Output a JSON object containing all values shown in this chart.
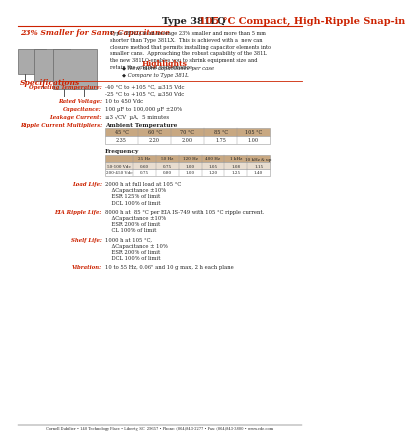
{
  "title_black": "Type 381LQ ",
  "title_red": "105 °C Compact, High-Ripple Snap-in",
  "subtitle": "23% Smaller for Same Capacitance",
  "body_text": "Type 381LQ is on average 23% smaller and more than 5 mm\nshorter than Type 381LX.  This is achieved with a  new can\nclosure method that permits installing capacitor elements into\nsmaller cans.  Approaching the robust capability of the 381L\nthe new 381LQ enables you to shrink equipment size and\nretain the original performance.",
  "highlights_title": "Highlights",
  "highlights": [
    "New, more capacitance per case",
    "Compare to Type 381L"
  ],
  "spec_title": "Specifications",
  "specs": [
    [
      "Operating Temperature:",
      "-40 °C to +105 °C, ≤315 Vdc\n-25 °C to +105 °C, ≥350 Vdc"
    ],
    [
      "Rated Voltage:",
      "10 to 450 Vdc"
    ],
    [
      "Capacitance:",
      "100 µF to 100,000 µF ±20%"
    ],
    [
      "Leakage Current:",
      "≤3 √CV  µA,  5 minutes"
    ],
    [
      "Ripple Current Multipliers:",
      "Ambient Temperature"
    ]
  ],
  "amb_temp_headers": [
    "45 °C",
    "60 °C",
    "70 °C",
    "85 °C",
    "105 °C"
  ],
  "amb_temp_values": [
    "2.35",
    "2.20",
    "2.00",
    "1.75",
    "1.00"
  ],
  "freq_label": "Frequency",
  "freq_headers": [
    "25 Hz",
    "50 Hz",
    "120 Hz",
    "400 Hz",
    "1 kHz",
    "10 kHz & up"
  ],
  "freq_row1_label": "50-100 Vdc",
  "freq_row1": [
    "0.60",
    "0.75",
    "1.00",
    "1.05",
    "1.08",
    "1.15"
  ],
  "freq_row2_label": "200-450 Vdc",
  "freq_row2": [
    "0.75",
    "0.80",
    "1.00",
    "1.20",
    "1.25",
    "1.40"
  ],
  "load_life_label": "Load Life:",
  "load_life_text": "2000 h at full load at 105 °C\nΔCapacitance ±10%\nESR 125% of limit\nDCL 100% of limit",
  "eia_label": "EIA Ripple Life:",
  "eia_text": "8000 h at  85 °C per EIA IS-749 with 105 °C ripple current.\nΔCapacitance ±10%\nESR 200% of limit\nCL 100% of limit",
  "shelf_label": "Shelf Life:",
  "shelf_text": "1000 h at 105 °C,\nΔCapacitance ± 10%\nESR 200% of limit\nDCL 100% of limit",
  "vib_label": "Vibration:",
  "vib_text": "10 to 55 Hz, 0.06\" and 10 g max, 2 h each plane",
  "footer": "Cornell Dubilier • 140 Technology Place • Liberty, SC  29657 • Phone: (864)843-2277 • Fax: (864)843-3800 • www.cde.com",
  "red_color": "#cc2200",
  "header_bg": "#c8a882",
  "table_light": "#e8ddd0",
  "bg_white": "#ffffff"
}
